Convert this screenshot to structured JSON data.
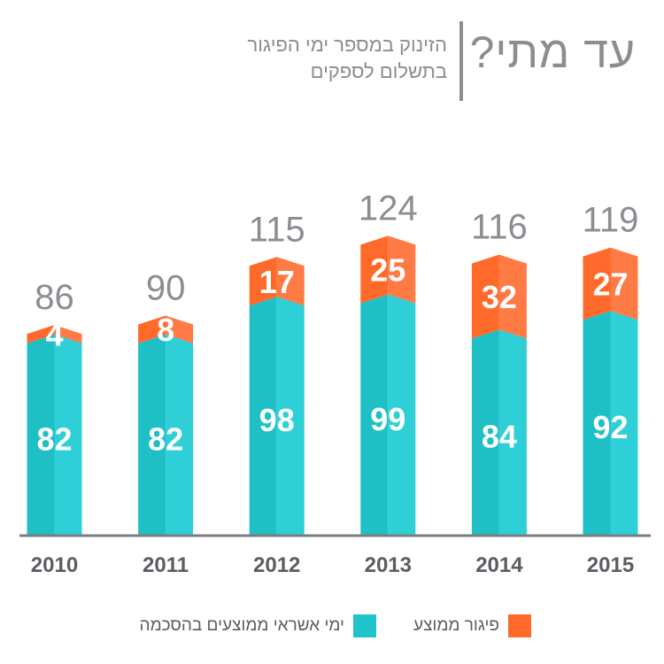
{
  "title": {
    "main": "עד מתי?",
    "subtitle_line1": "הזינוק במספר ימי הפיגור",
    "subtitle_line2": "בתשלום לספקים"
  },
  "colors": {
    "base": "#2ecfd6",
    "base_dark": "#1fbfc6",
    "top": "#ff7a45",
    "top_dark": "#ff6a2a",
    "axis": "#7a7d80",
    "text": "#8a8d91"
  },
  "legend": [
    {
      "label": "פיגור ממוצע",
      "color": "#ff6a2a"
    },
    {
      "label": "ימי אשראי ממוצעים בהסכמה",
      "color": "#1fc3cc"
    }
  ],
  "chart_data": {
    "type": "bar",
    "stacked": true,
    "categories": [
      "2010",
      "2011",
      "2012",
      "2013",
      "2014",
      "2015"
    ],
    "series": [
      {
        "name": "ימי אשראי ממוצעים בהסכמה",
        "values": [
          82,
          82,
          98,
          99,
          84,
          92
        ]
      },
      {
        "name": "פיגור ממוצע",
        "values": [
          4,
          8,
          17,
          25,
          32,
          27
        ]
      }
    ],
    "totals": [
      86,
      90,
      115,
      124,
      116,
      119
    ],
    "title": "עד מתי?",
    "ylim": [
      0,
      160
    ],
    "grid": false,
    "legend_position": "bottom"
  }
}
